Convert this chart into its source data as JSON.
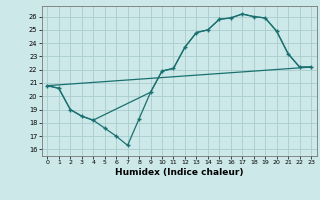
{
  "xlabel": "Humidex (Indice chaleur)",
  "bg_color": "#cce8e8",
  "grid_color": "#aacccc",
  "line_color": "#1a7070",
  "xlim": [
    -0.5,
    23.5
  ],
  "ylim": [
    15.5,
    26.8
  ],
  "xticks": [
    0,
    1,
    2,
    3,
    4,
    5,
    6,
    7,
    8,
    9,
    10,
    11,
    12,
    13,
    14,
    15,
    16,
    17,
    18,
    19,
    20,
    21,
    22,
    23
  ],
  "yticks": [
    16,
    17,
    18,
    19,
    20,
    21,
    22,
    23,
    24,
    25,
    26
  ],
  "series1_x": [
    0,
    1,
    2,
    3,
    4,
    5,
    6,
    7,
    8,
    9,
    10,
    11,
    12,
    13,
    14,
    15,
    16,
    17,
    18,
    19,
    20,
    21,
    22,
    23
  ],
  "series1_y": [
    20.8,
    20.6,
    19.0,
    18.5,
    18.2,
    17.6,
    17.0,
    16.3,
    18.3,
    20.3,
    21.9,
    22.1,
    23.7,
    24.8,
    25.0,
    25.8,
    25.9,
    26.2,
    26.0,
    25.9,
    24.9,
    23.2,
    22.2,
    22.2
  ],
  "series2_x": [
    0,
    1,
    2,
    3,
    4,
    9,
    10,
    11,
    12,
    13,
    14,
    15,
    16,
    17,
    18,
    19,
    20,
    21,
    22,
    23
  ],
  "series2_y": [
    20.8,
    20.6,
    19.0,
    18.5,
    18.2,
    20.3,
    21.9,
    22.1,
    23.7,
    24.8,
    25.0,
    25.8,
    25.9,
    26.2,
    26.0,
    25.9,
    24.9,
    23.2,
    22.2,
    22.2
  ],
  "series3_x": [
    0,
    23
  ],
  "series3_y": [
    20.8,
    22.2
  ]
}
